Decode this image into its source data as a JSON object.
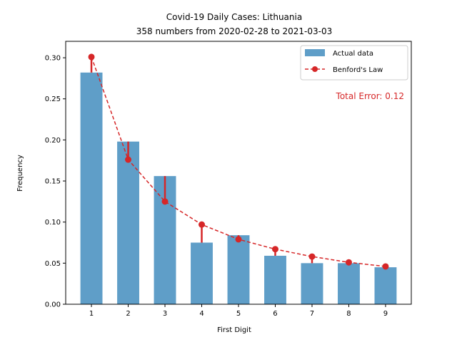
{
  "chart_data": {
    "type": "bar",
    "title": "Covid-19 Daily Cases: Lithuania",
    "subtitle": "358 numbers from 2020-02-28 to 2021-03-03",
    "xlabel": "First Digit",
    "ylabel": "Frequency",
    "categories": [
      "1",
      "2",
      "3",
      "4",
      "5",
      "6",
      "7",
      "8",
      "9"
    ],
    "x": [
      1,
      2,
      3,
      4,
      5,
      6,
      7,
      8,
      9
    ],
    "ylim": [
      0,
      0.32
    ],
    "yticks": [
      "0.00",
      "0.05",
      "0.10",
      "0.15",
      "0.20",
      "0.25",
      "0.30"
    ],
    "ytick_values": [
      0.0,
      0.05,
      0.1,
      0.15,
      0.2,
      0.25,
      0.3
    ],
    "series": [
      {
        "name": "Actual data",
        "kind": "bar",
        "color": "#5f9ec8",
        "values": [
          0.282,
          0.198,
          0.156,
          0.075,
          0.084,
          0.059,
          0.05,
          0.05,
          0.045
        ]
      },
      {
        "name": "Benford's Law",
        "kind": "line-dashed-markers",
        "color": "#d62728",
        "values": [
          0.301,
          0.176,
          0.125,
          0.097,
          0.079,
          0.067,
          0.058,
          0.051,
          0.046
        ]
      }
    ],
    "annotation": "Total Error: 0.12",
    "annotation_color": "#d62728",
    "legend_position": "top-right",
    "grid": false
  }
}
